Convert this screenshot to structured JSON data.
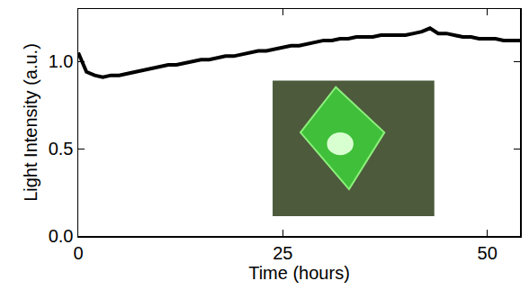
{
  "chart_data": {
    "type": "line",
    "x_label": "Time (hours)",
    "y_label": "Light Intensity (a.u.)",
    "x": [
      0,
      1,
      2,
      3,
      4,
      5,
      6,
      7,
      8,
      9,
      10,
      11,
      12,
      13,
      14,
      15,
      16,
      17,
      18,
      19,
      20,
      21,
      22,
      23,
      24,
      25,
      26,
      27,
      28,
      29,
      30,
      31,
      32,
      33,
      34,
      35,
      36,
      37,
      38,
      39,
      40,
      41,
      42,
      43,
      44,
      45,
      46,
      47,
      48,
      49,
      50,
      51,
      52,
      53,
      54
    ],
    "values": [
      1.05,
      0.94,
      0.92,
      0.91,
      0.92,
      0.92,
      0.93,
      0.94,
      0.95,
      0.96,
      0.97,
      0.98,
      0.98,
      0.99,
      1.0,
      1.01,
      1.01,
      1.02,
      1.03,
      1.03,
      1.04,
      1.05,
      1.06,
      1.06,
      1.07,
      1.08,
      1.09,
      1.09,
      1.1,
      1.11,
      1.12,
      1.12,
      1.13,
      1.13,
      1.14,
      1.14,
      1.14,
      1.15,
      1.15,
      1.15,
      1.15,
      1.16,
      1.17,
      1.19,
      1.16,
      1.16,
      1.15,
      1.14,
      1.14,
      1.13,
      1.13,
      1.13,
      1.12,
      1.12,
      1.12
    ],
    "color": "#000000",
    "xlim": [
      0,
      54
    ],
    "xticks": [
      0,
      25,
      50
    ],
    "ylim": [
      0,
      1.3
    ],
    "yticks": [
      {
        "value": 0,
        "label": "0.0"
      },
      {
        "value": 0.5,
        "label": "0.5"
      },
      {
        "value": 1,
        "label": "1.0"
      }
    ],
    "grid": false
  }
}
